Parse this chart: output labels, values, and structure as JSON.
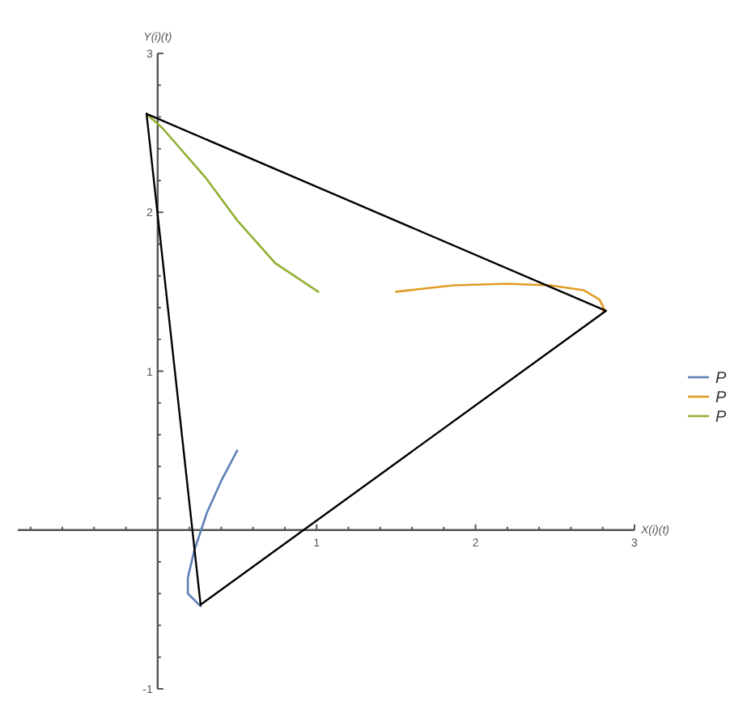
{
  "chart_data": {
    "type": "line",
    "xlabel": "X(i)(t)",
    "ylabel": "Y(i)(t)",
    "xlim": [
      -0.88,
      3
    ],
    "ylim": [
      -1,
      3
    ],
    "xticks": [
      {
        "value": -0.8,
        "label": null
      },
      {
        "value": -0.6,
        "label": null
      },
      {
        "value": -0.4,
        "label": null
      },
      {
        "value": -0.2,
        "label": null
      },
      {
        "value": 0.2,
        "label": null
      },
      {
        "value": 0.4,
        "label": null
      },
      {
        "value": 0.6,
        "label": null
      },
      {
        "value": 0.8,
        "label": null
      },
      1,
      {
        "value": 1.2,
        "label": null
      },
      {
        "value": 1.4,
        "label": null
      },
      {
        "value": 1.6,
        "label": null
      },
      {
        "value": 1.8,
        "label": null
      },
      2,
      {
        "value": 2.2,
        "label": null
      },
      {
        "value": 2.4,
        "label": null
      },
      {
        "value": 2.6,
        "label": null
      },
      {
        "value": 2.8,
        "label": null
      },
      3
    ],
    "yticks": [
      -1,
      {
        "value": -0.8,
        "label": null
      },
      {
        "value": -0.6,
        "label": null
      },
      {
        "value": -0.4,
        "label": null
      },
      {
        "value": -0.2,
        "label": null
      },
      {
        "value": 0.2,
        "label": null
      },
      {
        "value": 0.4,
        "label": null
      },
      {
        "value": 0.6,
        "label": null
      },
      {
        "value": 0.8,
        "label": null
      },
      1,
      {
        "value": 1.2,
        "label": null
      },
      {
        "value": 1.4,
        "label": null
      },
      {
        "value": 1.6,
        "label": null
      },
      {
        "value": 1.8,
        "label": null
      },
      2,
      {
        "value": 2.2,
        "label": null
      },
      {
        "value": 2.4,
        "label": null
      },
      {
        "value": 2.6,
        "label": null
      },
      {
        "value": 2.8,
        "label": null
      },
      3
    ],
    "legend": "right",
    "grid": false,
    "marker": "none",
    "line_style": "solid",
    "series": [
      {
        "name": "P",
        "color": "#5e81b5",
        "x": [
          0.27,
          0.19,
          0.19,
          0.23,
          0.31,
          0.4,
          0.5
        ],
        "values": [
          -0.48,
          -0.4,
          -0.3,
          -0.13,
          0.11,
          0.31,
          0.5
        ]
      },
      {
        "name": "P",
        "color": "#e19c24",
        "x": [
          2.8,
          2.81,
          2.78,
          2.68,
          2.47,
          2.2,
          1.86,
          1.5
        ],
        "values": [
          1.37,
          1.39,
          1.45,
          1.51,
          1.54,
          1.55,
          1.54,
          1.5
        ]
      },
      {
        "name": "P",
        "color": "#8fb032",
        "x": [
          -0.06,
          0.03,
          0.3,
          0.5,
          0.74,
          1.01
        ],
        "values": [
          2.61,
          2.53,
          2.22,
          1.95,
          1.68,
          1.5
        ]
      },
      {
        "color": "#000000",
        "x": [
          -0.07,
          2.82
        ],
        "values": [
          2.62,
          1.38
        ]
      },
      {
        "color": "#000000",
        "x": [
          2.82,
          0.27
        ],
        "values": [
          1.38,
          -0.47
        ]
      },
      {
        "color": "#000000",
        "x": [
          0.27,
          -0.07
        ],
        "values": [
          -0.47,
          2.62
        ]
      }
    ]
  }
}
